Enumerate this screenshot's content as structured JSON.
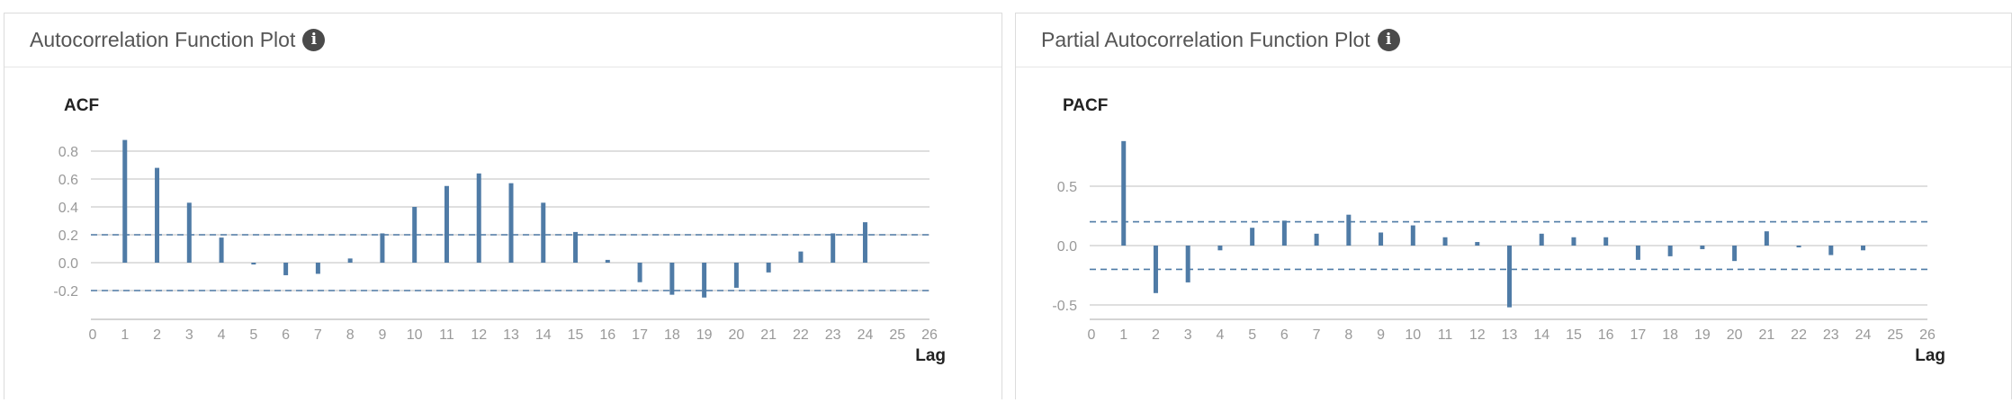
{
  "panels": [
    {
      "title": "Autocorrelation Function Plot",
      "info_icon": "info-circle-icon"
    },
    {
      "title": "Partial Autocorrelation Function Plot",
      "info_icon": "info-circle-icon"
    }
  ],
  "chart_data": [
    {
      "type": "bar",
      "title": "ACF",
      "xlabel": "Lag",
      "ylabel": "",
      "x": [
        1,
        2,
        3,
        4,
        5,
        6,
        7,
        8,
        9,
        10,
        11,
        12,
        13,
        14,
        15,
        16,
        17,
        18,
        19,
        20,
        21,
        22,
        23,
        24
      ],
      "values": [
        0.88,
        0.68,
        0.43,
        0.18,
        -0.01,
        -0.09,
        -0.08,
        0.03,
        0.21,
        0.4,
        0.55,
        0.64,
        0.57,
        0.43,
        0.22,
        0.02,
        -0.14,
        -0.23,
        -0.25,
        -0.18,
        -0.07,
        0.08,
        0.21,
        0.29
      ],
      "confidence_band": [
        -0.2,
        0.2
      ],
      "xlim": [
        0,
        26
      ],
      "ylim": [
        -0.3,
        0.9
      ],
      "xticks": [
        "0",
        "1",
        "2",
        "3",
        "4",
        "5",
        "6",
        "7",
        "8",
        "9",
        "10",
        "11",
        "12",
        "13",
        "14",
        "15",
        "16",
        "17",
        "18",
        "19",
        "20",
        "21",
        "22",
        "23",
        "24",
        "25",
        "26"
      ],
      "yticks": [
        "-0.2",
        "0.0",
        "0.2",
        "0.4",
        "0.6",
        "0.8"
      ],
      "ytick_values": [
        -0.2,
        0.0,
        0.2,
        0.4,
        0.6,
        0.8
      ],
      "grid": true,
      "colors": {
        "bar": "#4f7ba6",
        "band": "#4f7ba6",
        "grid": "#cccccc",
        "axis": "#bbbbbb"
      }
    },
    {
      "type": "bar",
      "title": "PACF",
      "xlabel": "Lag",
      "ylabel": "",
      "x": [
        1,
        2,
        3,
        4,
        5,
        6,
        7,
        8,
        9,
        10,
        11,
        12,
        13,
        14,
        15,
        16,
        17,
        18,
        19,
        20,
        21,
        22,
        23,
        24
      ],
      "values": [
        0.88,
        -0.4,
        -0.31,
        -0.04,
        0.15,
        0.21,
        0.1,
        0.26,
        0.11,
        0.17,
        0.07,
        0.03,
        -0.52,
        0.1,
        0.07,
        0.07,
        -0.12,
        -0.09,
        -0.03,
        -0.13,
        0.12,
        -0.01,
        -0.08,
        -0.04
      ],
      "confidence_band": [
        -0.2,
        0.2
      ],
      "xlim": [
        0,
        26
      ],
      "ylim": [
        -0.6,
        0.95
      ],
      "xticks": [
        "0",
        "1",
        "2",
        "3",
        "4",
        "5",
        "6",
        "7",
        "8",
        "9",
        "10",
        "11",
        "12",
        "13",
        "14",
        "15",
        "16",
        "17",
        "18",
        "19",
        "20",
        "21",
        "22",
        "23",
        "24",
        "25",
        "26"
      ],
      "yticks": [
        "-0.5",
        "0.0",
        "0.5"
      ],
      "ytick_values": [
        -0.5,
        0.0,
        0.5
      ],
      "grid": true,
      "colors": {
        "bar": "#4f7ba6",
        "band": "#4f7ba6",
        "grid": "#cccccc",
        "axis": "#bbbbbb"
      }
    }
  ]
}
